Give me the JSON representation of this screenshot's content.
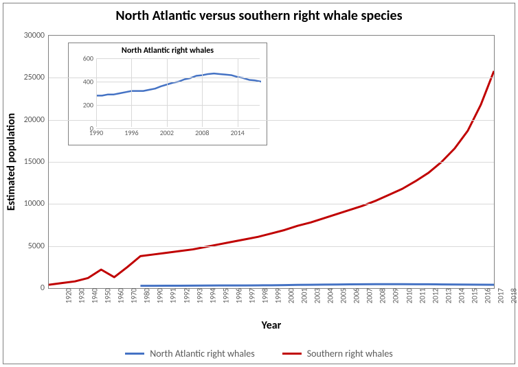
{
  "main_chart": {
    "type": "line",
    "title": "North Atlantic versus southern right whale species",
    "xlabel": "Year",
    "ylabel": "Estimated population",
    "title_fontsize": 20,
    "label_fontsize": 16,
    "tick_fontsize": 12,
    "background_color": "#ffffff",
    "border_color": "#808080",
    "grid_color": "#d9d9d9",
    "tick_label_color": "#595959",
    "line_width": 3,
    "ylim": [
      0,
      30000
    ],
    "ytick_step": 5000,
    "xlim": [
      1920,
      2018
    ],
    "x_categories": [
      1920,
      1930,
      1940,
      1950,
      1960,
      1970,
      1980,
      1990,
      1991,
      1992,
      1993,
      1994,
      1995,
      1996,
      1997,
      1998,
      1999,
      2000,
      2001,
      2003,
      2004,
      2005,
      2006,
      2007,
      2008,
      2009,
      2010,
      2011,
      2012,
      2013,
      2014,
      2015,
      2016,
      2017,
      2018
    ],
    "series": [
      {
        "name": "North Atlantic right whales",
        "color": "#4472c4",
        "x": [
          1990,
          1991,
          1992,
          1993,
          1994,
          1995,
          1996,
          1997,
          1998,
          1999,
          2000,
          2001,
          2003,
          2004,
          2005,
          2006,
          2007,
          2008,
          2009,
          2010,
          2011,
          2012,
          2013,
          2014,
          2015,
          2016,
          2017,
          2018
        ],
        "y": [
          280,
          280,
          290,
          290,
          300,
          310,
          320,
          320,
          320,
          330,
          340,
          360,
          390,
          400,
          420,
          430,
          450,
          455,
          465,
          470,
          465,
          460,
          455,
          440,
          430,
          415,
          410,
          400
        ]
      },
      {
        "name": "Southern right whales",
        "color": "#c00000",
        "x": [
          1920,
          1930,
          1940,
          1950,
          1960,
          1970,
          1980,
          1990,
          1991,
          1992,
          1993,
          1994,
          1995,
          1996,
          1997,
          1998,
          1999,
          2000,
          2001,
          2003,
          2004,
          2005,
          2006,
          2007,
          2008,
          2009,
          2010,
          2011,
          2012,
          2013,
          2014,
          2015,
          2016,
          2017,
          2018
        ],
        "y": [
          400,
          600,
          800,
          1200,
          2200,
          1300,
          2500,
          3800,
          4000,
          4200,
          4400,
          4600,
          4900,
          5200,
          5500,
          5800,
          6100,
          6500,
          6900,
          7400,
          7800,
          8300,
          8800,
          9300,
          9800,
          10400,
          11100,
          11800,
          12700,
          13700,
          15000,
          16600,
          18700,
          21800,
          25800
        ]
      }
    ],
    "legend": {
      "items": [
        {
          "label": "North Atlantic right whales",
          "color": "#4472c4"
        },
        {
          "label": "Southern right whales",
          "color": "#c00000"
        }
      ]
    }
  },
  "inset_chart": {
    "type": "line",
    "title": "North Atlantic right whales",
    "title_fontsize": 12,
    "ylim": [
      0,
      600
    ],
    "ytick_step": 200,
    "xlim": [
      1990,
      2018
    ],
    "xticks": [
      1990,
      1996,
      2002,
      2008,
      2014
    ],
    "color": "#4472c4",
    "line_width": 2.5,
    "x": [
      1990,
      1991,
      1992,
      1993,
      1994,
      1995,
      1996,
      1997,
      1998,
      1999,
      2000,
      2001,
      2002,
      2003,
      2004,
      2005,
      2006,
      2007,
      2008,
      2009,
      2010,
      2011,
      2012,
      2013,
      2014,
      2015,
      2016,
      2017,
      2018
    ],
    "y": [
      280,
      280,
      290,
      290,
      300,
      310,
      320,
      320,
      320,
      330,
      340,
      360,
      375,
      390,
      400,
      420,
      430,
      450,
      455,
      465,
      470,
      465,
      460,
      455,
      440,
      430,
      415,
      410,
      400
    ]
  }
}
